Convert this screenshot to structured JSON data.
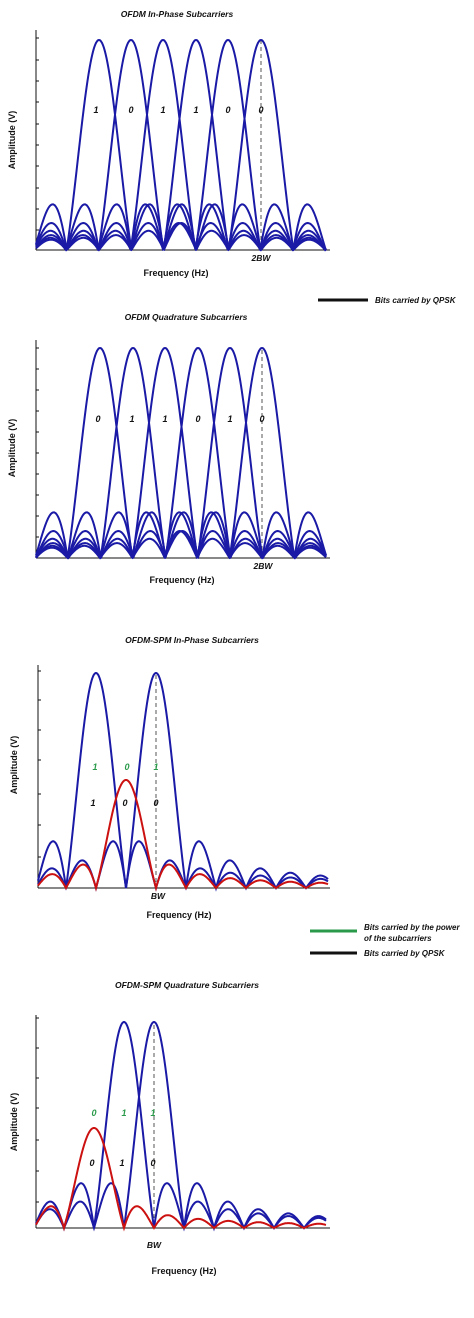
{
  "colors": {
    "blue": "#1a1aa6",
    "red": "#cc1111",
    "green": "#2a9a4a",
    "black": "#111111",
    "dash": "#555555"
  },
  "panels": [
    {
      "id": "p1",
      "title": "OFDM In-Phase Subcarriers",
      "ylabel": "Amplitude (V)",
      "xlabel": "Frequency (Hz)",
      "marker_label": "2BW",
      "black_bits": [
        "1",
        "0",
        "1",
        "1",
        "0",
        "0"
      ],
      "green_bits": []
    },
    {
      "id": "p2",
      "title": "OFDM Quadrature Subcarriers",
      "ylabel": "Amplitude (V)",
      "xlabel": "Frequency (Hz)",
      "marker_label": "2BW",
      "black_bits": [
        "0",
        "1",
        "1",
        "0",
        "1",
        "0"
      ],
      "green_bits": []
    },
    {
      "id": "p3",
      "title": "OFDM-SPM In-Phase Subcarriers",
      "ylabel": "Amplitude (V)",
      "xlabel": "Frequency (Hz)",
      "marker_label": "BW",
      "black_bits": [
        "1",
        "0",
        "0"
      ],
      "green_bits": [
        "1",
        "0",
        "1"
      ]
    },
    {
      "id": "p4",
      "title": "OFDM-SPM Quadrature Subcarriers",
      "ylabel": "Amplitude (V)",
      "xlabel": "Frequency (Hz)",
      "marker_label": "BW",
      "black_bits": [
        "0",
        "1",
        "0"
      ],
      "green_bits": [
        "0",
        "1",
        "1"
      ]
    }
  ],
  "legend1": {
    "qpsk": "Bits carried by QPSK"
  },
  "legend2": {
    "power_line1": "Bits carried by the power",
    "power_line2": "of the subcarriers",
    "qpsk": "Bits carried by QPSK"
  }
}
